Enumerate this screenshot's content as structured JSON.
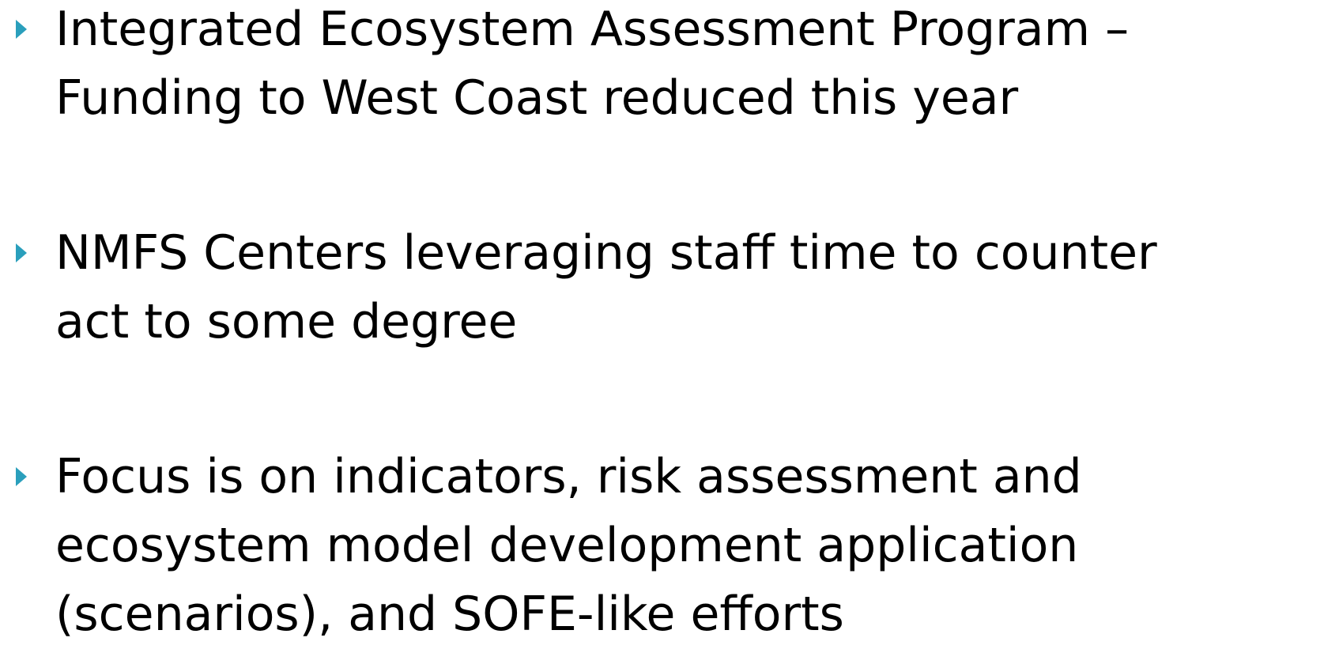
{
  "bullets": [
    {
      "lines": [
        "Integrated Ecosystem Assessment Program –",
        "Funding to West Coast reduced this year"
      ]
    },
    {
      "lines": [
        "NMFS Centers leveraging staff time to counter",
        "act to some degree"
      ]
    },
    {
      "lines": [
        "Focus is on indicators, risk assessment and",
        "ecosystem model development application",
        "(scenarios), and SOFE-like efforts"
      ]
    }
  ]
}
